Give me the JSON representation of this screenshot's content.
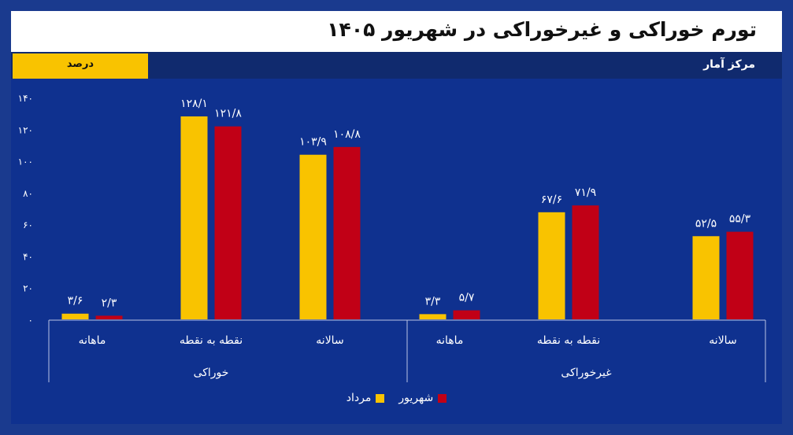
{
  "header": {
    "title": "تورم خوراکی و غیرخوراکی در شهریور ۱۴۰۵",
    "unit": "درصد",
    "source": "مرکز آمار"
  },
  "colors": {
    "background": "#0f318f",
    "series_mordad": "#f9c300",
    "series_shahrivar": "#c10016",
    "axis": "#b8c3e6"
  },
  "chart_data": {
    "type": "bar",
    "title": "تورم خوراکی و غیرخوراکی در شهریور ۱۴۰۵",
    "ylabel": "درصد",
    "ylim": [
      0,
      140
    ],
    "yticks": [
      "۰",
      "۲۰",
      "۴۰",
      "۶۰",
      "۸۰",
      "۱۰۰",
      "۱۲۰",
      "۱۴۰"
    ],
    "grid": false,
    "legend_position": "bottom-center",
    "groups": [
      {
        "name": "خوراکی",
        "categories": [
          "ماهانه",
          "نقطه به نقطه",
          "سالانه"
        ],
        "series": [
          {
            "name": "مرداد",
            "values": [
              3.6,
              128.1,
              103.9
            ],
            "labels": [
              "۳/۶",
              "۱۲۸/۱",
              "۱۰۳/۹"
            ]
          },
          {
            "name": "شهریور",
            "values": [
              2.3,
              121.8,
              108.8
            ],
            "labels": [
              "۲/۳",
              "۱۲۱/۸",
              "۱۰۸/۸"
            ]
          }
        ]
      },
      {
        "name": "غیرخوراکی",
        "categories": [
          "ماهانه",
          "نقطه به نقطه",
          "سالانه"
        ],
        "series": [
          {
            "name": "مرداد",
            "values": [
              3.3,
              67.6,
              52.5
            ],
            "labels": [
              "۳/۳",
              "۶۷/۶",
              "۵۲/۵"
            ]
          },
          {
            "name": "شهریور",
            "values": [
              5.7,
              71.9,
              55.3
            ],
            "labels": [
              "۵/۷",
              "۷۱/۹",
              "۵۵/۳"
            ]
          }
        ]
      }
    ]
  },
  "legend": {
    "items": [
      {
        "label": "شهریور",
        "color": "#c10016"
      },
      {
        "label": "مرداد",
        "color": "#f9c300"
      }
    ]
  }
}
